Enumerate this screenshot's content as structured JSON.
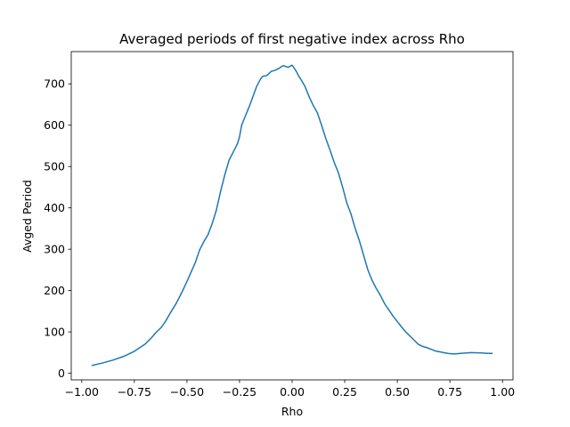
{
  "chart_data": {
    "type": "line",
    "title": "Averaged periods of first negative index across Rho",
    "xlabel": "Rho",
    "ylabel": "Avged Period",
    "xlim": [
      -1.05,
      1.05
    ],
    "ylim": [
      -16,
      778
    ],
    "xticks": [
      -1.0,
      -0.75,
      -0.5,
      -0.25,
      0.0,
      0.25,
      0.5,
      0.75,
      1.0
    ],
    "xtick_labels": [
      "−1.00",
      "−0.75",
      "−0.50",
      "−0.25",
      "0.00",
      "0.25",
      "0.50",
      "0.75",
      "1.00"
    ],
    "yticks": [
      0,
      100,
      200,
      300,
      400,
      500,
      600,
      700
    ],
    "ytick_labels": [
      "0",
      "100",
      "200",
      "300",
      "400",
      "500",
      "600",
      "700"
    ],
    "grid": false,
    "series": [
      {
        "color": "#1f77b4",
        "x": [
          -0.95,
          -0.9,
          -0.85,
          -0.8,
          -0.75,
          -0.7,
          -0.67,
          -0.65,
          -0.62,
          -0.6,
          -0.58,
          -0.55,
          -0.52,
          -0.5,
          -0.48,
          -0.46,
          -0.44,
          -0.42,
          -0.4,
          -0.38,
          -0.36,
          -0.34,
          -0.32,
          -0.3,
          -0.28,
          -0.26,
          -0.25,
          -0.24,
          -0.22,
          -0.2,
          -0.18,
          -0.17,
          -0.15,
          -0.14,
          -0.12,
          -0.1,
          -0.08,
          -0.06,
          -0.05,
          -0.04,
          -0.02,
          0.0,
          0.01,
          0.02,
          0.03,
          0.04,
          0.06,
          0.08,
          0.1,
          0.12,
          0.14,
          0.16,
          0.18,
          0.2,
          0.22,
          0.24,
          0.26,
          0.28,
          0.3,
          0.32,
          0.34,
          0.36,
          0.38,
          0.4,
          0.42,
          0.44,
          0.46,
          0.48,
          0.5,
          0.52,
          0.54,
          0.56,
          0.58,
          0.6,
          0.62,
          0.64,
          0.66,
          0.68,
          0.7,
          0.72,
          0.74,
          0.76,
          0.78,
          0.8,
          0.85,
          0.9,
          0.93,
          0.95
        ],
        "y": [
          19,
          25,
          32,
          41,
          53,
          70,
          85,
          97,
          112,
          127,
          145,
          170,
          200,
          222,
          245,
          268,
          298,
          318,
          335,
          362,
          395,
          440,
          480,
          515,
          535,
          555,
          572,
          600,
          625,
          650,
          678,
          692,
          712,
          718,
          720,
          730,
          733,
          738,
          742,
          744,
          740,
          745,
          738,
          730,
          720,
          712,
          695,
          670,
          648,
          630,
          600,
          568,
          540,
          510,
          485,
          450,
          412,
          385,
          350,
          320,
          285,
          250,
          225,
          205,
          188,
          168,
          153,
          138,
          125,
          112,
          100,
          90,
          80,
          70,
          65,
          62,
          58,
          54,
          52,
          50,
          48,
          47,
          47,
          48,
          50,
          49,
          48,
          48
        ]
      }
    ]
  }
}
